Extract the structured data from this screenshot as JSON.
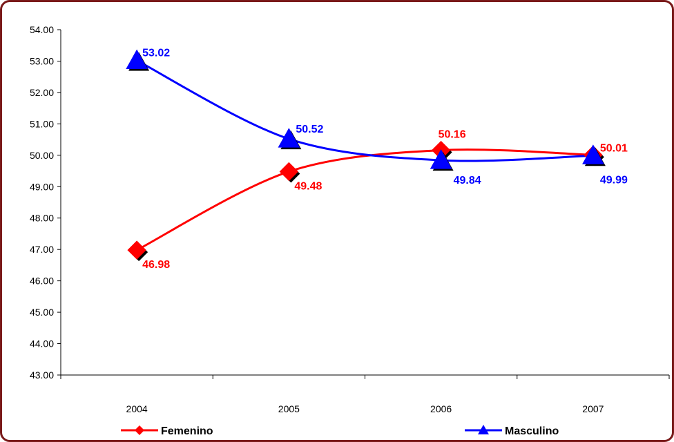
{
  "chart_data": {
    "type": "line",
    "categories": [
      "2004",
      "2005",
      "2006",
      "2007"
    ],
    "series": [
      {
        "name": "Femenino",
        "values": [
          46.98,
          49.48,
          50.16,
          50.01
        ],
        "color": "#ff0000",
        "marker": "diamond",
        "labels": [
          "46.98",
          "49.48",
          "50.16",
          "50.01"
        ]
      },
      {
        "name": "Masculino",
        "values": [
          53.02,
          50.52,
          49.84,
          49.99
        ],
        "color": "#0000ff",
        "marker": "triangle",
        "labels": [
          "53.02",
          "50.52",
          "49.84",
          "49.99"
        ]
      }
    ],
    "ylim": [
      43.0,
      54.0
    ],
    "y_ticks": [
      "43.00",
      "44.00",
      "45.00",
      "46.00",
      "47.00",
      "48.00",
      "49.00",
      "50.00",
      "51.00",
      "52.00",
      "53.00",
      "54.00"
    ],
    "grid": false,
    "legend_position": "bottom",
    "smooth": true
  },
  "colors": {
    "frame": "#7a1a1a",
    "axis": "#000000"
  }
}
